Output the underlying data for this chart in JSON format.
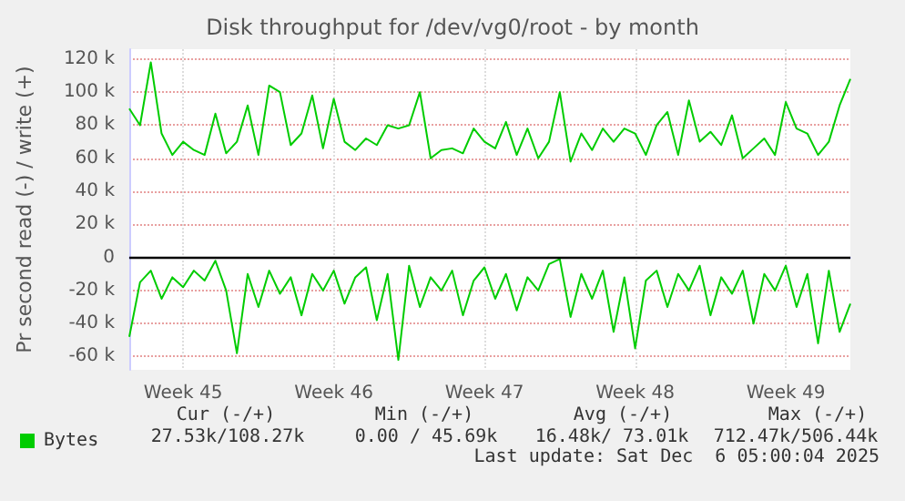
{
  "chart_data": {
    "type": "line",
    "title": "Disk throughput for /dev/vg0/root - by month",
    "ylabel": "Pr second read (-) / write (+)",
    "categories": [
      null,
      null,
      null,
      null,
      null,
      "Week 45",
      null,
      null,
      null,
      null,
      null,
      null,
      null,
      null,
      null,
      null,
      null,
      null,
      null,
      "Week 46",
      null,
      null,
      null,
      null,
      null,
      null,
      null,
      null,
      null,
      null,
      null,
      null,
      null,
      "Week 47",
      null,
      null,
      null,
      null,
      null,
      null,
      null,
      null,
      null,
      null,
      null,
      null,
      null,
      "Week 48",
      null,
      null,
      null,
      null,
      null,
      null,
      null,
      null,
      null,
      null,
      null,
      null,
      null,
      "Week 49",
      null,
      null,
      null,
      null,
      null,
      null
    ],
    "series": [
      {
        "name": "Bytes",
        "color": "#00cc00",
        "values": [
          90000,
          80000,
          118000,
          75000,
          62000,
          70000,
          65000,
          62000,
          87000,
          63000,
          70000,
          92000,
          62000,
          104000,
          100000,
          68000,
          75000,
          98000,
          66000,
          96000,
          70000,
          65000,
          72000,
          68000,
          80000,
          78000,
          80000,
          100000,
          60000,
          65000,
          66000,
          63000,
          78000,
          70000,
          66000,
          82000,
          62000,
          78000,
          60000,
          70000,
          100000,
          58000,
          75000,
          65000,
          78000,
          70000,
          78000,
          75000,
          62000,
          80000,
          88000,
          62000,
          95000,
          70000,
          76000,
          68000,
          86000,
          60000,
          66000,
          72000,
          62000,
          94000,
          78000,
          75000,
          62000,
          70000,
          92000,
          108000
        ]
      },
      {
        "color": "#00cc00",
        "values": [
          -48000,
          -15000,
          -8000,
          -25000,
          -12000,
          -18000,
          -8000,
          -14000,
          -2000,
          -20000,
          -58000,
          -10000,
          -30000,
          -8000,
          -22000,
          -12000,
          -35000,
          -10000,
          -20000,
          -8000,
          -28000,
          -12000,
          -6000,
          -38000,
          -10000,
          -62000,
          -5000,
          -30000,
          -12000,
          -20000,
          -8000,
          -35000,
          -14000,
          -6000,
          -25000,
          -10000,
          -32000,
          -12000,
          -20000,
          -4000,
          -1000,
          -36000,
          -10000,
          -25000,
          -8000,
          -45000,
          -12000,
          -55000,
          -14000,
          -8000,
          -30000,
          -10000,
          -20000,
          -5000,
          -35000,
          -12000,
          -22000,
          -8000,
          -40000,
          -10000,
          -20000,
          -5000,
          -30000,
          -10000,
          -52000,
          -8000,
          -45000,
          -28000
        ]
      }
    ],
    "ylim": [
      -68000,
      126000
    ],
    "yticks": [
      {
        "value": -60000,
        "label": "-60 k"
      },
      {
        "value": -40000,
        "label": "-40 k"
      },
      {
        "value": -20000,
        "label": "-20 k"
      },
      0,
      {
        "value": 20000,
        "label": "20 k"
      },
      {
        "value": 40000,
        "label": "40 k"
      },
      {
        "value": 60000,
        "label": "60 k"
      },
      {
        "value": 80000,
        "label": "80 k"
      },
      {
        "value": 100000,
        "label": "100 k"
      },
      {
        "value": 120000,
        "label": "120 k"
      }
    ],
    "ref_lines": [
      {
        "axis": "y",
        "value": 0,
        "color": "#000000"
      }
    ],
    "grid": true,
    "legend": "bottom left",
    "marker": "none",
    "line_style": "solid",
    "annotations": [
      "Cur (-/+)",
      "Min (-/+)",
      "Avg (-/+)",
      "Max (-/+)",
      "27.53k/108.27k",
      "0.00 / 45.69k",
      "16.48k/ 73.01k",
      "712.47k/506.44k",
      "Last update: Sat Dec  6 05:00:04 2025"
    ]
  }
}
